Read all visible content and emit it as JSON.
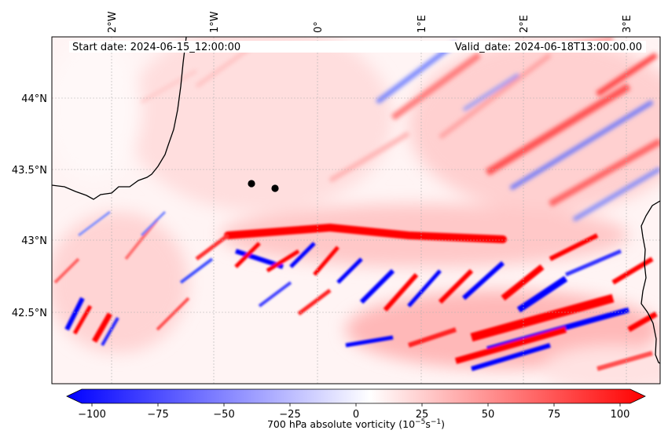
{
  "map": {
    "start_date_label": "Start date: 2024-06-15_12:00:00",
    "valid_date_label": "Valid_date: 2024-06-18T13:00:00.00",
    "lon_ticks": [
      "2°W",
      "1°W",
      "0°",
      "1°E",
      "2°E",
      "3°E"
    ],
    "lat_ticks": [
      "44°N",
      "43.5°N",
      "43°N",
      "42.5°N"
    ],
    "extent": {
      "lon": [
        -2.6,
        3.3
      ],
      "lat": [
        42.0,
        44.4
      ]
    },
    "grid": true,
    "markers": [
      {
        "name": "point-1",
        "lon": -0.65,
        "lat": 43.39
      },
      {
        "name": "point-2",
        "lon": -0.42,
        "lat": 43.36
      }
    ],
    "colors": {
      "negative": "#0000ff",
      "neutral": "#ffffff",
      "positive": "#ff0000",
      "coastline": "#000000",
      "marker": "#000000"
    }
  },
  "colorbar": {
    "label": "700 hPa absolute vorticity (10$^{-5}$s$^{-1}$)",
    "label_main": "700 hPa absolute vorticity (10",
    "label_exp": "−5",
    "label_unit": "s",
    "label_exp2": "−1",
    "label_close": ")",
    "ticks": [
      "−100",
      "−75",
      "−50",
      "−25",
      "0",
      "25",
      "50",
      "75",
      "100"
    ],
    "range": [
      -110,
      100
    ],
    "extend": "both"
  }
}
